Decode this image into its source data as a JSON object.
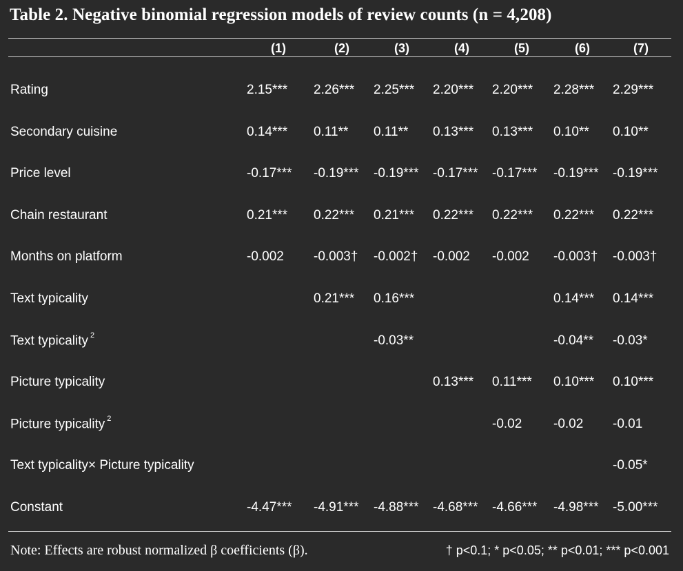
{
  "title": "Table 2. Negative binomial regression models of review counts (n = 4,208)",
  "columns": [
    "(1)",
    "(2)",
    "(3)",
    "(4)",
    "(5)",
    "(6)",
    "(7)"
  ],
  "rows": [
    {
      "label": "Rating",
      "label_sup": "",
      "values": [
        "2.15***",
        "2.26***",
        "2.25***",
        "2.20***",
        "2.20***",
        "2.28***",
        "2.29***"
      ]
    },
    {
      "label": "Secondary cuisine",
      "label_sup": "",
      "values": [
        "0.14***",
        "0.11**",
        "0.11**",
        "0.13***",
        "0.13***",
        "0.10**",
        "0.10**"
      ]
    },
    {
      "label": "Price level",
      "label_sup": "",
      "values": [
        "-0.17***",
        "-0.19***",
        "-0.19***",
        "-0.17***",
        "-0.17***",
        "-0.19***",
        "-0.19***"
      ]
    },
    {
      "label": "Chain restaurant",
      "label_sup": "",
      "values": [
        "0.21***",
        "0.22***",
        "0.21***",
        "0.22***",
        "0.22***",
        "0.22***",
        "0.22***"
      ]
    },
    {
      "label": "Months on platform",
      "label_sup": "",
      "values": [
        "-0.002",
        "-0.003†",
        "-0.002†",
        "-0.002",
        "-0.002",
        "-0.003†",
        "-0.003†"
      ]
    },
    {
      "label": "Text typicality",
      "label_sup": "",
      "values": [
        "",
        "0.21***",
        "0.16***",
        "",
        "",
        "0.14***",
        "0.14***"
      ]
    },
    {
      "label": "Text typicality",
      "label_sup": "2",
      "values": [
        "",
        "",
        "-0.03**",
        "",
        "",
        "-0.04**",
        "-0.03*"
      ]
    },
    {
      "label": "Picture typicality",
      "label_sup": "",
      "values": [
        "",
        "",
        "",
        "0.13***",
        "0.11***",
        "0.10***",
        "0.10***"
      ]
    },
    {
      "label": "Picture typicality",
      "label_sup": "2",
      "values": [
        "",
        "",
        "",
        "",
        "-0.02",
        "-0.02",
        "-0.01"
      ]
    },
    {
      "label": "Text typicality× Picture typicality",
      "label_sup": "",
      "values": [
        "",
        "",
        "",
        "",
        "",
        "",
        "-0.05*"
      ]
    },
    {
      "label": "Constant",
      "label_sup": "",
      "values": [
        "-4.47***",
        "-4.91***",
        "-4.88***",
        "-4.68***",
        "-4.66***",
        "-4.98***",
        "-5.00***"
      ]
    }
  ],
  "note": "Note: Effects are robust normalized β coefficients (β).",
  "significance": "† p<0.1; * p<0.05; ** p<0.01; *** p<0.001"
}
